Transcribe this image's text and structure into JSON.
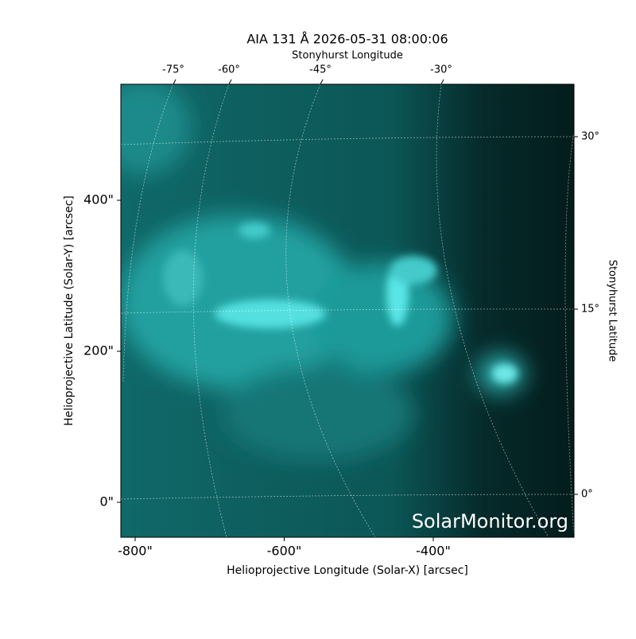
{
  "chart_data": {
    "type": "image",
    "title": "AIA 131 Å 2026-05-31 08:00:06",
    "xlabel": "Helioprojective Longitude (Solar-X) [arcsec]",
    "ylabel": "Helioprojective Latitude (Solar-Y) [arcsec]",
    "top_label": "Stonyhurst Longitude",
    "right_label": "Stonyhurst Latitude",
    "xlim": [
      -819.2,
      -211.2
    ],
    "ylim": [
      -46.3,
      553.7
    ],
    "xticks": [
      {
        "value": -800,
        "label": "-800\""
      },
      {
        "value": -600,
        "label": "-600\""
      },
      {
        "value": -400,
        "label": "-400\""
      }
    ],
    "yticks": [
      {
        "value": 0,
        "label": "0\""
      },
      {
        "value": 200,
        "label": "200\""
      },
      {
        "value": 400,
        "label": "400\""
      }
    ],
    "top_ticks": [
      {
        "value": -75,
        "label": "-75°"
      },
      {
        "value": -60,
        "label": "-60°"
      },
      {
        "value": -45,
        "label": "-45°"
      },
      {
        "value": -30,
        "label": "-30°"
      }
    ],
    "right_ticks": [
      {
        "value": 30,
        "label": "30°"
      },
      {
        "value": 15,
        "label": "15°"
      },
      {
        "value": 0,
        "label": "0°"
      }
    ],
    "watermark": "SolarMonitor.org"
  }
}
